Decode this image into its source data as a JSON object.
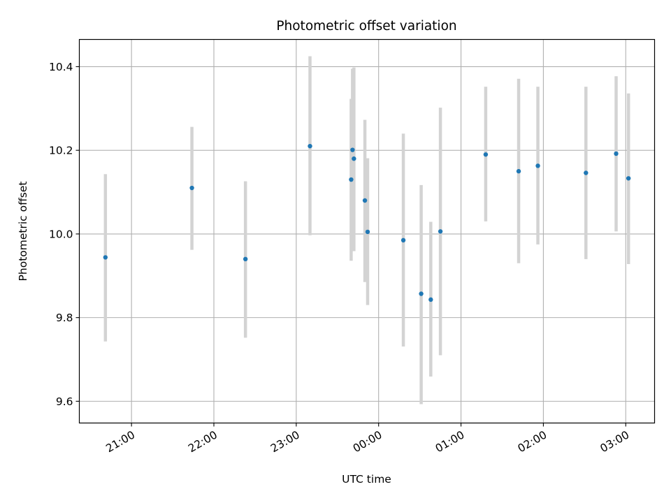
{
  "chart_data": {
    "type": "scatter",
    "title": "Photometric offset variation",
    "xlabel": "UTC time",
    "ylabel": "Photometric offset",
    "x_unit": "datetime",
    "x_tick_labels": [
      "21:00",
      "22:00",
      "23:00",
      "00:00",
      "01:00",
      "02:00",
      "03:00"
    ],
    "x_ticks": [
      "21:00",
      "22:00",
      "23:00",
      "00:00",
      "01:00",
      "02:00",
      "03:00"
    ],
    "xlim": [
      "20:22",
      "03:21"
    ],
    "y_tick_labels": [
      "9.6",
      "9.8",
      "10.0",
      "10.2",
      "10.4"
    ],
    "y_ticks": [
      9.6,
      9.8,
      10.0,
      10.2,
      10.4
    ],
    "ylim": [
      9.548,
      10.465
    ],
    "grid": true,
    "legend": "none",
    "colors": {
      "marker": "#1f77b4",
      "errorbar": "#d3d3d3",
      "grid": "#b0b0b0",
      "axes": "#000000"
    },
    "series": [
      {
        "x": [
          "20:41",
          "21:44",
          "22:23",
          "23:10",
          "23:40",
          "23:41",
          "23:42",
          "23:50",
          "23:52",
          "00:18",
          "00:31",
          "00:38",
          "00:45",
          "01:18",
          "01:42",
          "01:56",
          "02:31",
          "02:53",
          "03:02"
        ],
        "y": [
          9.944,
          10.11,
          9.94,
          10.21,
          10.13,
          10.201,
          10.18,
          10.08,
          10.005,
          9.985,
          9.857,
          9.843,
          10.006,
          10.19,
          10.15,
          10.163,
          10.146,
          10.192,
          10.133
        ],
        "y_lower": [
          9.743,
          9.962,
          9.752,
          9.997,
          9.936,
          10.006,
          9.959,
          9.885,
          9.83,
          9.731,
          9.593,
          9.659,
          9.71,
          10.03,
          9.93,
          9.975,
          9.94,
          10.006,
          9.928
        ],
        "y_upper": [
          10.143,
          10.256,
          10.126,
          10.425,
          10.323,
          10.395,
          10.398,
          10.273,
          10.181,
          10.24,
          10.117,
          10.029,
          10.302,
          10.352,
          10.371,
          10.352,
          10.352,
          10.377,
          10.336
        ]
      }
    ]
  }
}
